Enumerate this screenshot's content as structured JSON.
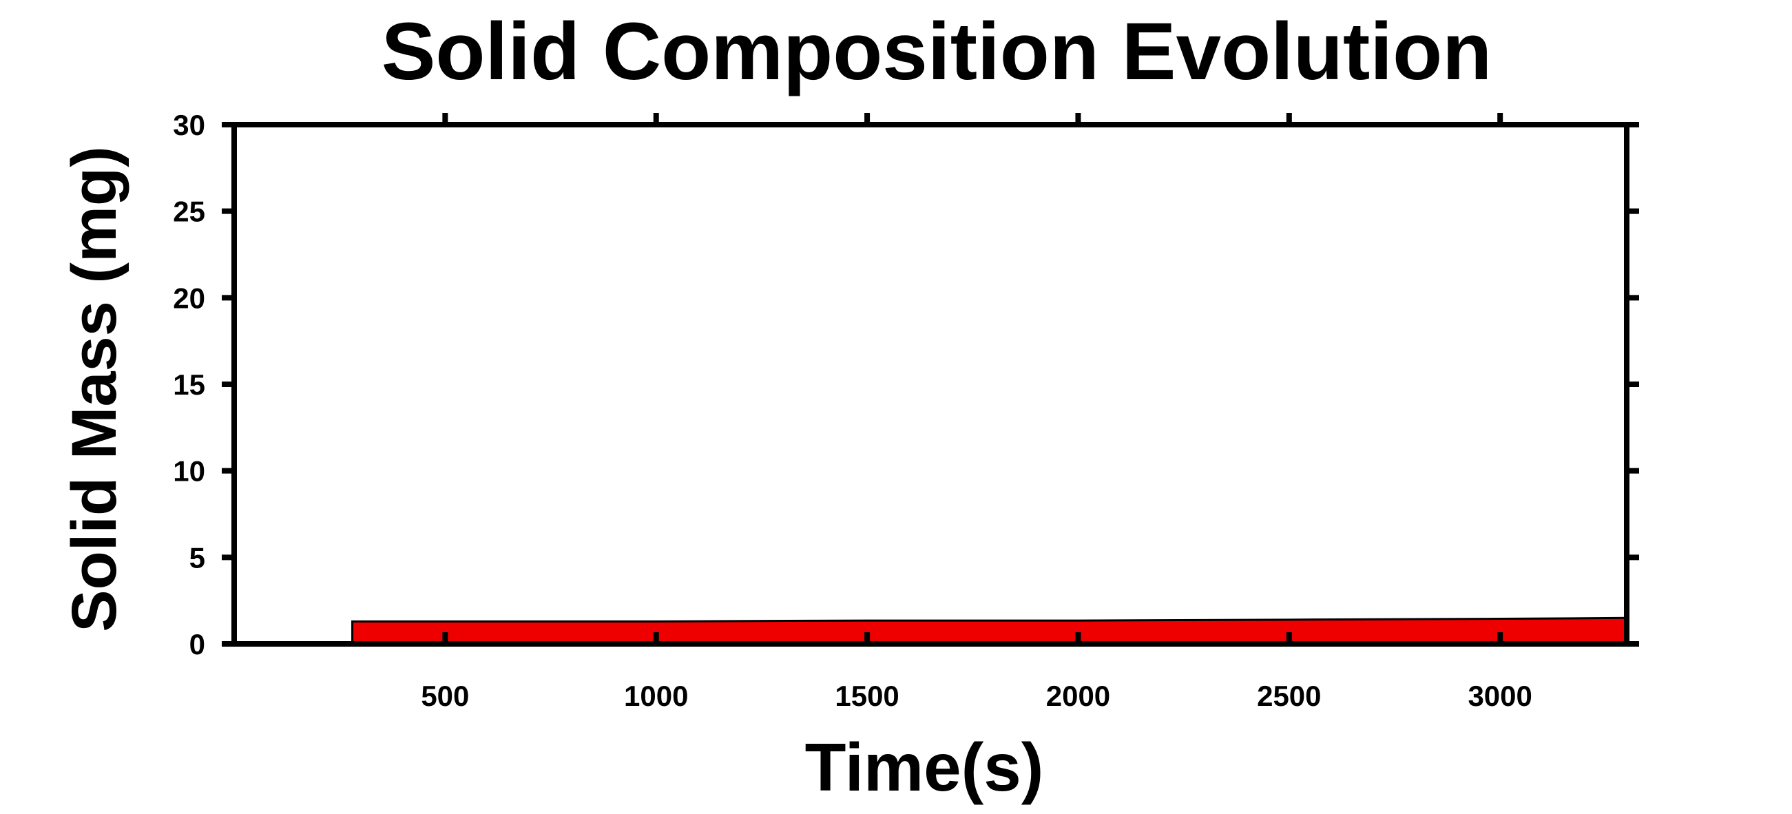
{
  "chart_data": {
    "type": "area",
    "title": "Solid Composition Evolution",
    "xlabel": "Time(s)",
    "ylabel": "Solid Mass (mg)",
    "xlim": [
      0,
      3300
    ],
    "ylim": [
      0,
      30
    ],
    "x_ticks": [
      500,
      1000,
      1500,
      2000,
      2500,
      3000
    ],
    "x_tick_labels": [
      "500",
      "1000",
      "1500",
      "2000",
      "2500",
      "3000"
    ],
    "y_ticks": [
      0,
      5,
      10,
      15,
      20,
      25,
      30
    ],
    "y_tick_labels": [
      "0",
      "5",
      "10",
      "15",
      "20",
      "25",
      "30"
    ],
    "grid": false,
    "series": [
      {
        "color": "#ee0000",
        "x": [
          280,
          500,
          1000,
          1500,
          2000,
          2500,
          3000,
          3300
        ],
        "y": [
          1.3,
          1.3,
          1.3,
          1.35,
          1.35,
          1.4,
          1.45,
          1.5
        ]
      }
    ]
  }
}
